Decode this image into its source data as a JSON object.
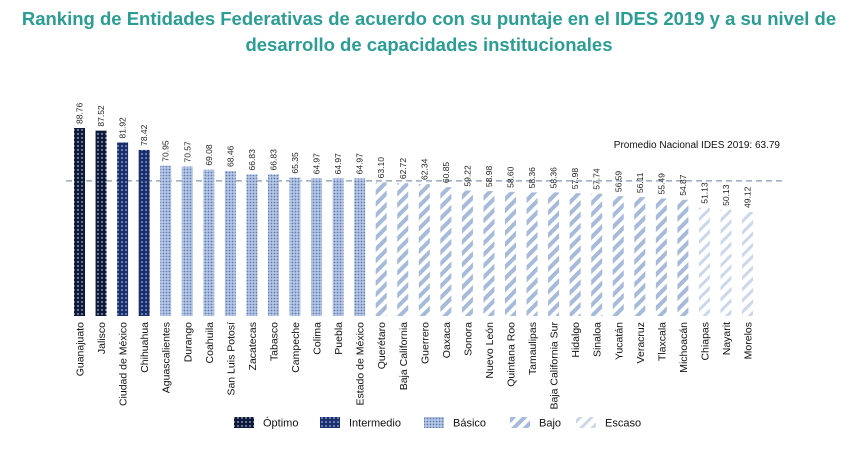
{
  "title": "Ranking de Entidades Federativas de acuerdo con su puntaje en el IDES 2019 y a su nivel de desarrollo de capacidades institucionales",
  "chart_data": {
    "type": "bar",
    "title": "Ranking de Entidades Federativas de acuerdo con su puntaje en el IDES 2019 y a su nivel de desarrollo de capacidades institucionales",
    "categories": [
      "Guanajuato",
      "Jalisco",
      "Ciudad de México",
      "Chihuahua",
      "Aguascalientes",
      "Durango",
      "Coahuila",
      "San Luis Potosí",
      "Zacatecas",
      "Tabasco",
      "Campeche",
      "Colima",
      "Puebla",
      "Estado de México",
      "Querétaro",
      "Baja California",
      "Guerrero",
      "Oaxaca",
      "Sonora",
      "Nuevo León",
      "Quintana Roo",
      "Tamaulipas",
      "Baja California Sur",
      "Hidalgo",
      "Sinaloa",
      "Yucatán",
      "Veracruz",
      "Tlaxcala",
      "Michoacán",
      "Chiapas",
      "Nayarit",
      "Morelos"
    ],
    "values": [
      88.76,
      87.52,
      81.92,
      78.42,
      70.95,
      70.57,
      69.08,
      68.46,
      66.83,
      66.83,
      65.35,
      64.97,
      64.97,
      64.97,
      63.1,
      62.72,
      62.34,
      60.85,
      59.22,
      58.98,
      58.6,
      58.36,
      58.36,
      57.98,
      57.74,
      56.59,
      56.11,
      55.49,
      54.87,
      51.13,
      50.13,
      49.12
    ],
    "value_labels": [
      "88.76",
      "87.52",
      "81.92",
      "78.42",
      "70.95",
      "70.57",
      "69.08",
      "68.46",
      "66.83",
      "66.83",
      "65.35",
      "64.97",
      "64.97",
      "64.97",
      "63.10",
      "62.72",
      "62.34",
      "60.85",
      "59.22",
      "58.98",
      "58.60",
      "58.36",
      "58.36",
      "57.98",
      "57.74",
      "56.59",
      "56.11",
      "55.49",
      "54.87",
      "51.13",
      "50.13",
      "49.12"
    ],
    "levels": [
      "optimo",
      "optimo",
      "intermedio",
      "intermedio",
      "basico",
      "basico",
      "basico",
      "basico",
      "basico",
      "basico",
      "basico",
      "basico",
      "basico",
      "basico",
      "bajo",
      "bajo",
      "bajo",
      "bajo",
      "bajo",
      "bajo",
      "bajo",
      "bajo",
      "bajo",
      "bajo",
      "bajo",
      "bajo",
      "bajo",
      "bajo",
      "bajo",
      "escaso",
      "escaso",
      "escaso"
    ],
    "reference_line": {
      "value": 63.79,
      "label": "Promedio Nacional IDES 2019: 63.79"
    },
    "legend": [
      {
        "key": "optimo",
        "label": "Óptimo"
      },
      {
        "key": "intermedio",
        "label": "Intermedio"
      },
      {
        "key": "basico",
        "label": "Básico"
      },
      {
        "key": "bajo",
        "label": "Bajo"
      },
      {
        "key": "escaso",
        "label": "Escaso"
      }
    ],
    "legend_position": "bottom",
    "ylim": [
      0,
      88.76
    ],
    "xlabel": "",
    "ylabel": "",
    "grid": false
  },
  "colors": {
    "title": "#2a9d94",
    "optimo": "#0d1a3d",
    "intermedio": "#1a2f6e",
    "basico": "#9fb6dc",
    "bajo": "#a6bad9",
    "escaso": "#c9d3e6",
    "reference_line": "#8a97b0"
  }
}
